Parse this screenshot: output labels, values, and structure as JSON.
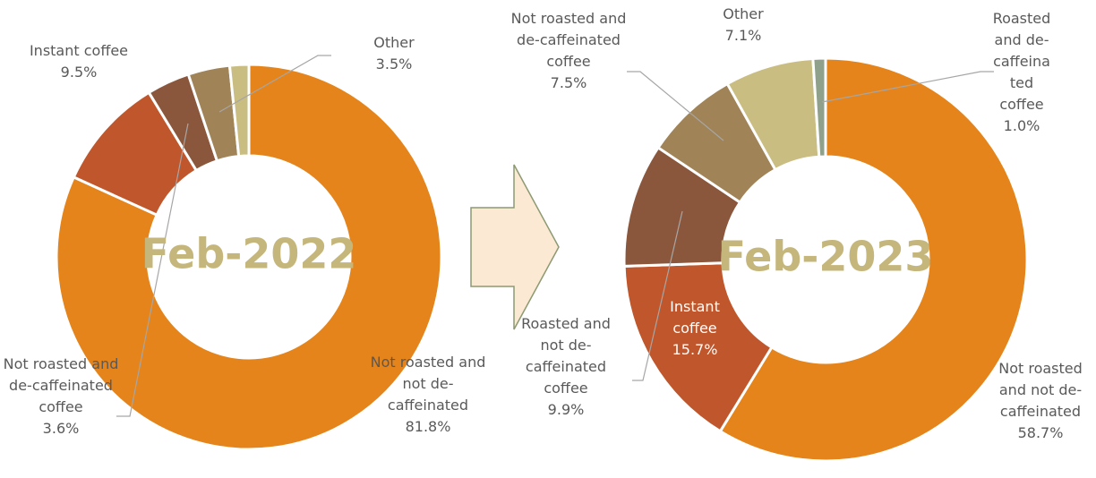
{
  "chart_data": [
    {
      "type": "pie",
      "title": "Feb-2022",
      "categories": [
        "Not roasted and not de-caffeinated",
        "Instant coffee",
        "Not roasted and de-caffeinated coffee",
        "Other",
        null
      ],
      "values": [
        81.8,
        9.5,
        3.6,
        3.5,
        1.6
      ],
      "value_labels": [
        "81.8%",
        "9.5%",
        "3.6%",
        "3.5%",
        null
      ],
      "colors": [
        "#e5841a",
        "#c0562b",
        "#8b573c",
        "#a08357",
        "#c9bd82"
      ]
    },
    {
      "type": "pie",
      "title": "Feb-2023",
      "categories": [
        "Not roasted and not de-caffeinated",
        "Instant coffee",
        "Roasted and not de-caffeinated coffee",
        "Not roasted and de-caffeinated coffee",
        "Other",
        "Roasted and de-caffeinated coffee"
      ],
      "values": [
        58.7,
        15.7,
        9.9,
        7.5,
        7.1,
        1.0
      ],
      "value_labels": [
        "58.7%",
        "15.7%",
        "9.9%",
        "7.5%",
        "7.1%",
        "1.0%"
      ],
      "colors": [
        "#e5841a",
        "#c0562b",
        "#8b573c",
        "#a08357",
        "#c9bd82",
        "#8fa08b"
      ]
    }
  ]
}
